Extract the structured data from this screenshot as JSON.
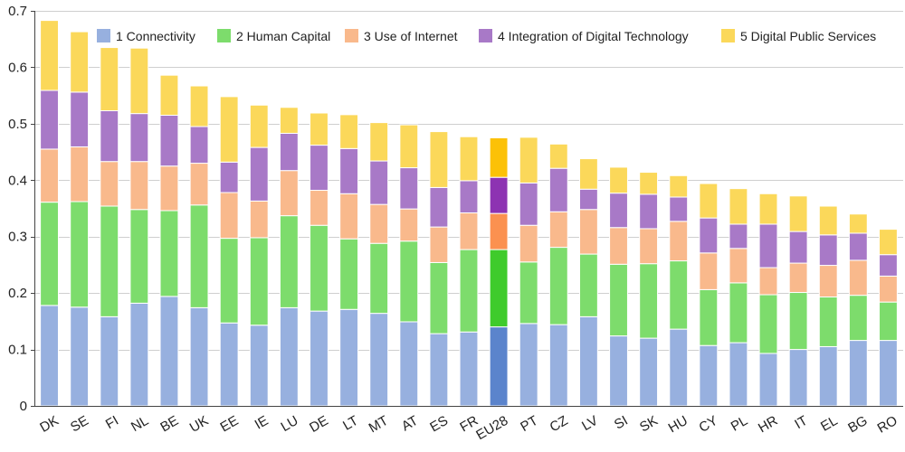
{
  "chart_data": {
    "type": "bar",
    "stacked": true,
    "highlight_category": "EU28",
    "categories": [
      "DK",
      "SE",
      "FI",
      "NL",
      "BE",
      "UK",
      "EE",
      "IE",
      "LU",
      "DE",
      "LT",
      "MT",
      "AT",
      "ES",
      "FR",
      "EU28",
      "PT",
      "CZ",
      "LV",
      "SI",
      "SK",
      "HU",
      "CY",
      "PL",
      "HR",
      "IT",
      "EL",
      "BG",
      "RO"
    ],
    "series": [
      {
        "name": "1 Connectivity",
        "color": "#97b0df",
        "highlight_color": "#5b84cc",
        "values": [
          0.178,
          0.175,
          0.158,
          0.182,
          0.194,
          0.174,
          0.147,
          0.143,
          0.174,
          0.168,
          0.171,
          0.164,
          0.149,
          0.128,
          0.131,
          0.14,
          0.146,
          0.144,
          0.158,
          0.124,
          0.12,
          0.136,
          0.107,
          0.112,
          0.093,
          0.1,
          0.105,
          0.116,
          0.116
        ]
      },
      {
        "name": "2 Human Capital",
        "color": "#7ddc6c",
        "highlight_color": "#3fcb2c",
        "values": [
          0.183,
          0.187,
          0.196,
          0.166,
          0.152,
          0.182,
          0.15,
          0.155,
          0.163,
          0.152,
          0.125,
          0.124,
          0.143,
          0.126,
          0.146,
          0.137,
          0.109,
          0.137,
          0.111,
          0.127,
          0.132,
          0.121,
          0.099,
          0.106,
          0.104,
          0.101,
          0.088,
          0.08,
          0.068
        ]
      },
      {
        "name": "3 Use of Internet",
        "color": "#f9b98c",
        "highlight_color": "#fb9150",
        "values": [
          0.094,
          0.097,
          0.079,
          0.085,
          0.079,
          0.074,
          0.081,
          0.065,
          0.08,
          0.062,
          0.08,
          0.069,
          0.057,
          0.063,
          0.065,
          0.064,
          0.065,
          0.063,
          0.079,
          0.065,
          0.062,
          0.07,
          0.065,
          0.061,
          0.048,
          0.052,
          0.056,
          0.062,
          0.046
        ]
      },
      {
        "name": "4 Integration of Digital Technology",
        "color": "#a879c7",
        "highlight_color": "#8d33b2",
        "values": [
          0.104,
          0.097,
          0.09,
          0.085,
          0.09,
          0.065,
          0.054,
          0.095,
          0.066,
          0.08,
          0.08,
          0.077,
          0.073,
          0.07,
          0.057,
          0.064,
          0.075,
          0.077,
          0.036,
          0.061,
          0.061,
          0.043,
          0.062,
          0.043,
          0.077,
          0.056,
          0.054,
          0.048,
          0.038
        ]
      },
      {
        "name": "5 Digital Public Services",
        "color": "#fbd85a",
        "highlight_color": "#fcc107",
        "values": [
          0.124,
          0.107,
          0.112,
          0.116,
          0.071,
          0.072,
          0.116,
          0.075,
          0.046,
          0.057,
          0.06,
          0.068,
          0.076,
          0.099,
          0.078,
          0.07,
          0.081,
          0.043,
          0.054,
          0.046,
          0.039,
          0.038,
          0.061,
          0.063,
          0.054,
          0.063,
          0.051,
          0.034,
          0.045
        ]
      }
    ],
    "ylim": [
      0,
      0.7
    ],
    "yticks": [
      "0",
      "0.1",
      "0.2",
      "0.3",
      "0.4",
      "0.5",
      "0.6",
      "0.7"
    ],
    "ytick_values": [
      0,
      0.1,
      0.2,
      0.3,
      0.4,
      0.5,
      0.6,
      0.7
    ],
    "grid": true,
    "legend": "top-right",
    "title": "",
    "xlabel": "",
    "ylabel": ""
  }
}
